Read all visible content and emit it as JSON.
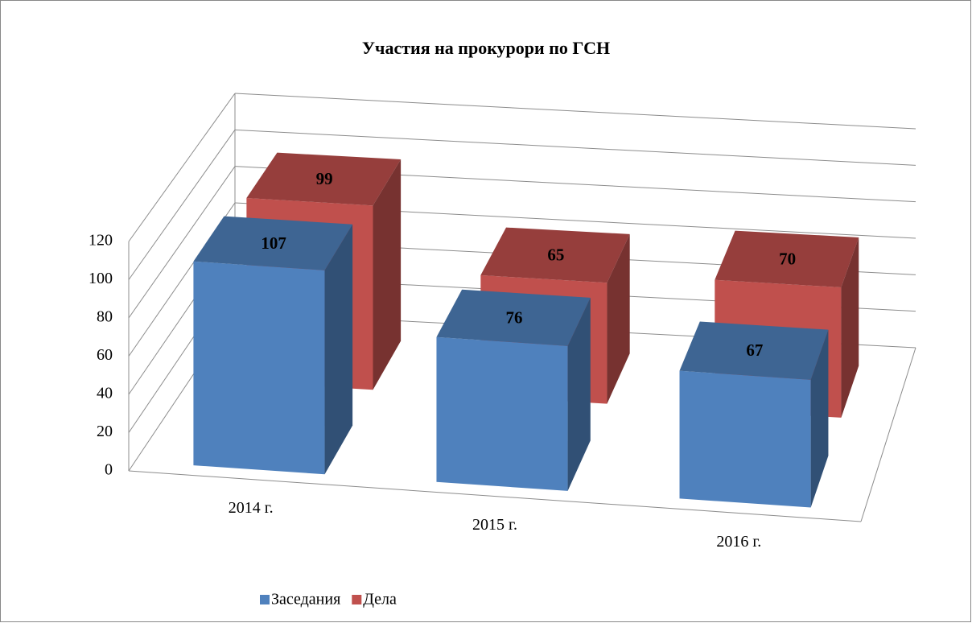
{
  "chart_data": {
    "type": "bar3d",
    "title": "Участия на прокурори по ГСН",
    "categories": [
      "2014 г.",
      "2015 г.",
      "2016 г."
    ],
    "series": [
      {
        "name": "Заседания",
        "color": "#4f81bd",
        "values": [
          107,
          76,
          67
        ]
      },
      {
        "name": "Дела",
        "color": "#c0504d",
        "values": [
          99,
          65,
          70
        ]
      }
    ],
    "ylim": [
      0,
      120
    ],
    "yticks": [
      0,
      20,
      40,
      60,
      80,
      100,
      120
    ],
    "grid": true,
    "legend": "bottom"
  }
}
